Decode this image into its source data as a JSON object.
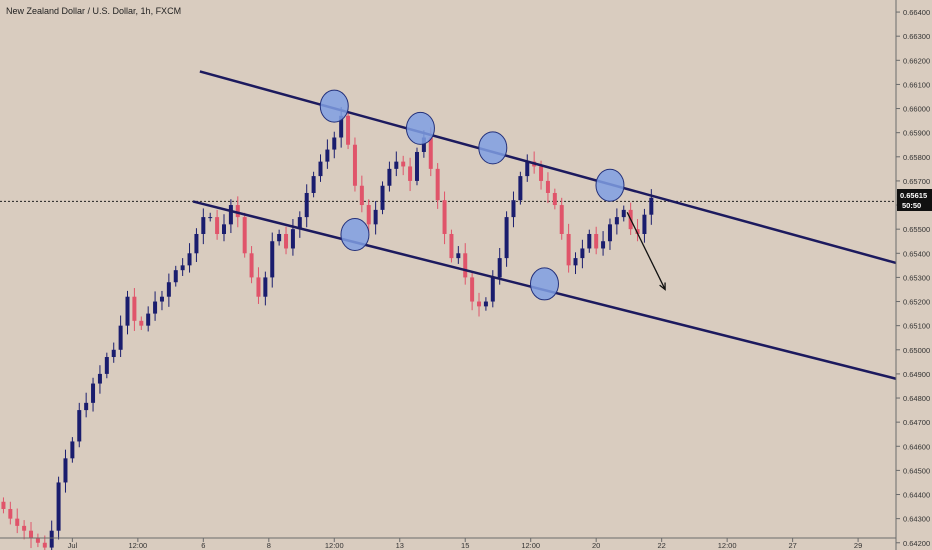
{
  "header": {
    "title": "New Zealand Dollar / U.S. Dollar, 1h, FXCM"
  },
  "price_badge": {
    "price": "0.65615",
    "countdown": "50:50"
  },
  "colors": {
    "background": "#d9ccbf",
    "up_candle": "#1a1d6e",
    "down_candle": "#e0546a",
    "channel_line": "#1c1a5e",
    "marker_fill": "#7f9fe3",
    "marker_stroke": "#23307a",
    "badge_bg": "#111111"
  },
  "chart_data": {
    "type": "candlestick",
    "symbol": "New Zealand Dollar / U.S. Dollar, 1h, FXCM",
    "y_ticks": [
      "0.66400",
      "0.66300",
      "0.66200",
      "0.66100",
      "0.66000",
      "0.65900",
      "0.65800",
      "0.65700",
      "0.65600",
      "0.65500",
      "0.65400",
      "0.65300",
      "0.65200",
      "0.65100",
      "0.65000",
      "0.64900",
      "0.64800",
      "0.64700",
      "0.64600",
      "0.64500",
      "0.64400",
      "0.64300",
      "0.64200"
    ],
    "ylim": [
      0.6417,
      0.6645
    ],
    "x_ticks": [
      {
        "label": "Jul",
        "t": 10.5
      },
      {
        "label": "12:00",
        "t": 20
      },
      {
        "label": "6",
        "t": 29.5
      },
      {
        "label": "8",
        "t": 39
      },
      {
        "label": "12:00",
        "t": 48.5
      },
      {
        "label": "13",
        "t": 58
      },
      {
        "label": "15",
        "t": 67.5
      },
      {
        "label": "12:00",
        "t": 77
      },
      {
        "label": "20",
        "t": 86.5
      },
      {
        "label": "22",
        "t": 96
      },
      {
        "label": "12:00",
        "t": 105.5
      },
      {
        "label": "27",
        "t": 115
      },
      {
        "label": "29",
        "t": 124.5
      }
    ],
    "xlim": [
      0,
      130
    ],
    "candles_close": [
      0.6434,
      0.643,
      0.6427,
      0.6425,
      0.6422,
      0.642,
      0.6418,
      0.6425,
      0.6445,
      0.6455,
      0.6462,
      0.6475,
      0.6478,
      0.6486,
      0.649,
      0.6497,
      0.65,
      0.651,
      0.6522,
      0.6512,
      0.651,
      0.6515,
      0.652,
      0.6522,
      0.6528,
      0.6533,
      0.6535,
      0.654,
      0.6548,
      0.6555,
      0.6555,
      0.6548,
      0.6552,
      0.656,
      0.6555,
      0.654,
      0.653,
      0.6522,
      0.653,
      0.6545,
      0.6548,
      0.6542,
      0.655,
      0.6555,
      0.6565,
      0.6572,
      0.6578,
      0.6583,
      0.6588,
      0.6597,
      0.6585,
      0.6568,
      0.656,
      0.6552,
      0.6558,
      0.6568,
      0.6575,
      0.6578,
      0.6576,
      0.657,
      0.6582,
      0.6588,
      0.6575,
      0.6562,
      0.6548,
      0.6538,
      0.654,
      0.653,
      0.652,
      0.6518,
      0.652,
      0.653,
      0.6538,
      0.6555,
      0.6562,
      0.6572,
      0.6578,
      0.6576,
      0.657,
      0.6565,
      0.656,
      0.6548,
      0.6535,
      0.6538,
      0.6542,
      0.6548,
      0.6542,
      0.6545,
      0.6552,
      0.6555,
      0.6558,
      0.655,
      0.6548,
      0.6556,
      0.6563
    ],
    "candles_open_start": 0.6437,
    "price_line": 0.65615,
    "channel_upper": [
      {
        "t": 29,
        "price": 0.66154
      },
      {
        "t": 130,
        "price": 0.6536
      }
    ],
    "channel_lower": [
      {
        "t": 28,
        "price": 0.65615
      },
      {
        "t": 130,
        "price": 0.6488
      }
    ],
    "touch_points": [
      {
        "t": 48.5,
        "price": 0.6601,
        "kind": "top"
      },
      {
        "t": 51.5,
        "price": 0.65478,
        "kind": "bottom"
      },
      {
        "t": 61,
        "price": 0.65918,
        "kind": "top"
      },
      {
        "t": 71.5,
        "price": 0.65837,
        "kind": "top"
      },
      {
        "t": 79,
        "price": 0.65273,
        "kind": "bottom"
      },
      {
        "t": 88.5,
        "price": 0.65682,
        "kind": "top"
      }
    ],
    "arrow": {
      "from": {
        "t": 91,
        "price": 0.6557
      },
      "to": {
        "t": 96.5,
        "price": 0.6525
      }
    }
  }
}
